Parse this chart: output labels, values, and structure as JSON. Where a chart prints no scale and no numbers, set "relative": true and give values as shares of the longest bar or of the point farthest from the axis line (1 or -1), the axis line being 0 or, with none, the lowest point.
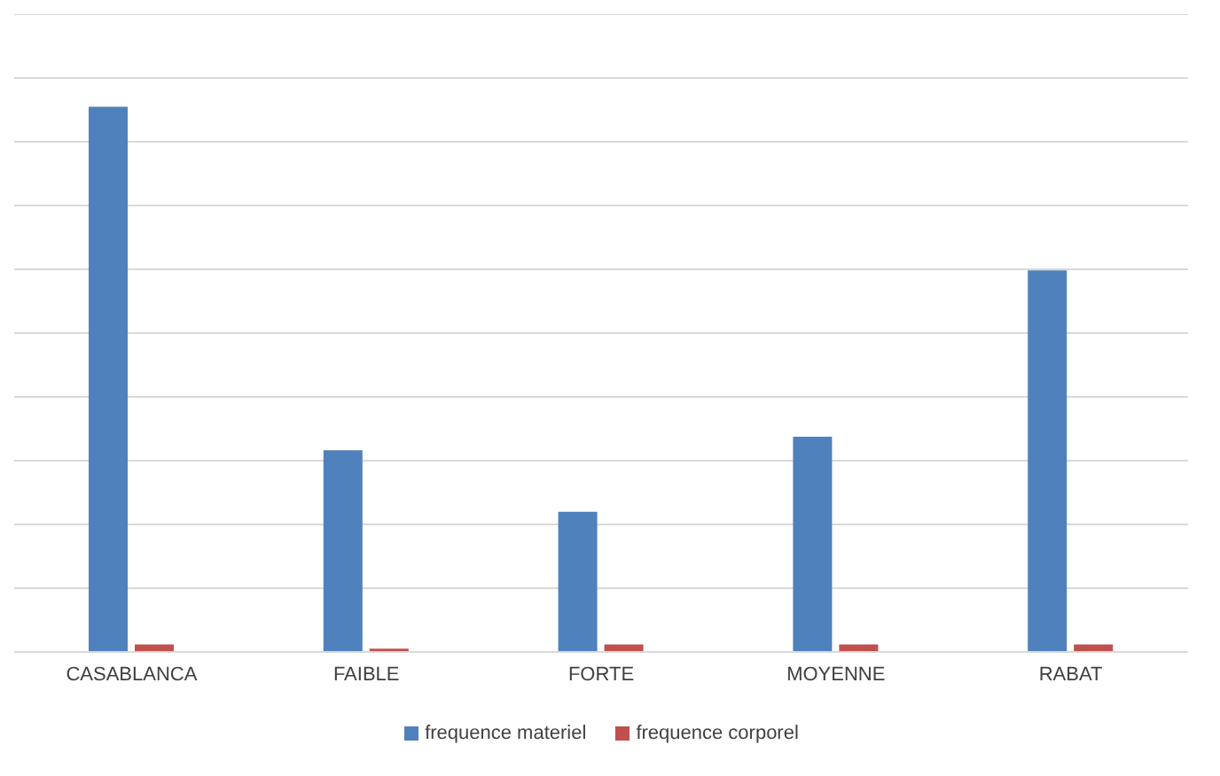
{
  "chart_data": {
    "type": "bar",
    "relative": true,
    "categories": [
      "CASABLANCA",
      "FAIBLE",
      "FORTE",
      "MOYENNE",
      "RABAT"
    ],
    "series": [
      {
        "name": "frequence materiel",
        "color": "#4f81bd",
        "values": [
          1,
          0.37,
          0.257,
          0.395,
          0.7
        ]
      },
      {
        "name": "frequence corporel",
        "color": "#c0504d",
        "values": [
          0.014,
          0.006,
          0.014,
          0.014,
          0.014
        ]
      }
    ],
    "grid": "y",
    "legend": "bottom"
  }
}
